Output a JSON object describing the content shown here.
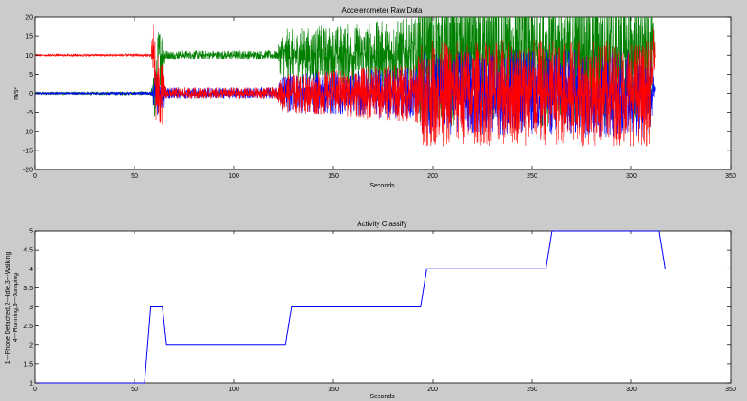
{
  "chart_data": [
    {
      "type": "line",
      "title": "Accelerometer Raw Data",
      "xlabel": "Seconds",
      "ylabel": "m/s²",
      "xlim": [
        0,
        350
      ],
      "ylim": [
        -20,
        20
      ],
      "xticks": [
        0,
        50,
        100,
        150,
        200,
        250,
        300,
        350
      ],
      "yticks": [
        -20,
        -15,
        -10,
        -5,
        0,
        5,
        10,
        15,
        20
      ],
      "grid": false,
      "duration": 312,
      "series": [
        {
          "color": "#008000",
          "baseline": [
            [
              0,
              0
            ],
            [
              61,
              0
            ],
            [
              62,
              10
            ],
            [
              312,
              10
            ]
          ],
          "amplitude": [
            [
              0,
              0.4
            ],
            [
              58,
              0.5
            ],
            [
              60,
              8
            ],
            [
              64,
              8
            ],
            [
              66,
              1.2
            ],
            [
              122,
              1.2
            ],
            [
              124,
              7
            ],
            [
              192,
              10
            ],
            [
              194,
              19
            ],
            [
              310,
              19
            ],
            [
              312,
              1
            ]
          ]
        },
        {
          "color": "#0000ff",
          "baseline": [
            [
              0,
              0
            ],
            [
              312,
              0
            ]
          ],
          "amplitude": [
            [
              0,
              0.3
            ],
            [
              58,
              0.4
            ],
            [
              60,
              6
            ],
            [
              64,
              6
            ],
            [
              66,
              1.5
            ],
            [
              122,
              1.5
            ],
            [
              124,
              5
            ],
            [
              192,
              7
            ],
            [
              194,
              11
            ],
            [
              310,
              12
            ],
            [
              312,
              2
            ]
          ]
        },
        {
          "color": "#ff0000",
          "baseline": [
            [
              0,
              10
            ],
            [
              60,
              10
            ],
            [
              61,
              0
            ],
            [
              310,
              0
            ],
            [
              311,
              10
            ],
            [
              312,
              10
            ]
          ],
          "amplitude": [
            [
              0,
              0.3
            ],
            [
              58,
              0.4
            ],
            [
              60,
              12
            ],
            [
              64,
              8
            ],
            [
              66,
              1.5
            ],
            [
              122,
              1.5
            ],
            [
              124,
              5
            ],
            [
              192,
              8
            ],
            [
              194,
              14
            ],
            [
              310,
              14
            ],
            [
              312,
              2
            ]
          ]
        }
      ]
    },
    {
      "type": "line",
      "title": "Activity Classify",
      "xlabel": "Seconds",
      "ylabel_lines": [
        "1---Phone Detached,2---Idle,3---Walking,",
        "4---Running,5---Jumping"
      ],
      "xlim": [
        0,
        350
      ],
      "ylim": [
        1,
        5
      ],
      "xticks": [
        0,
        50,
        100,
        150,
        200,
        250,
        300,
        350
      ],
      "yticks": [
        1,
        1.5,
        2,
        2.5,
        3,
        3.5,
        4,
        4.5,
        5
      ],
      "grid": false,
      "series": [
        {
          "color": "#0000ff",
          "x": [
            0,
            55,
            58,
            61,
            64,
            66,
            126,
            129,
            194,
            197,
            257,
            260,
            314,
            317
          ],
          "y": [
            1,
            1,
            3,
            3,
            3,
            2,
            2,
            3,
            3,
            4,
            4,
            5,
            5,
            4
          ]
        }
      ]
    }
  ]
}
